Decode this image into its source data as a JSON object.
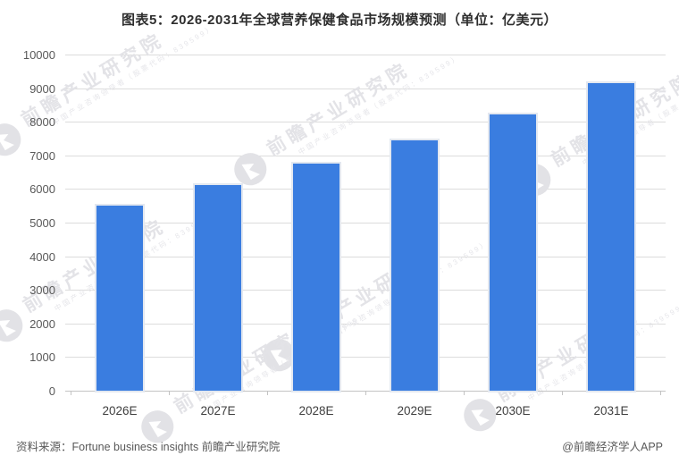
{
  "title": "图表5：2026-2031年全球营养保健食品市场规模预测（单位：亿美元）",
  "chart_data": {
    "type": "bar",
    "title": "图表5：2026-2031年全球营养保健食品市场规模预测（单位：亿美元）",
    "unit": "亿美元",
    "categories": [
      "2026E",
      "2027E",
      "2028E",
      "2029E",
      "2030E",
      "2031E"
    ],
    "values": [
      5500,
      6130,
      6750,
      7450,
      8220,
      9150
    ],
    "xlabel": "",
    "ylabel": "",
    "ylim": [
      0,
      10000
    ],
    "ytick_step": 1000,
    "grid": true,
    "legend": "none",
    "bar_color": "#3a7de0"
  },
  "watermark": {
    "text": "前瞻产业研究院",
    "subtext": "中国产业咨询领导者（股票代码：839599）"
  },
  "footer": {
    "source": "资料来源：Fortune business insights  前瞻产业研究院",
    "credit": "@前瞻经济学人APP"
  }
}
